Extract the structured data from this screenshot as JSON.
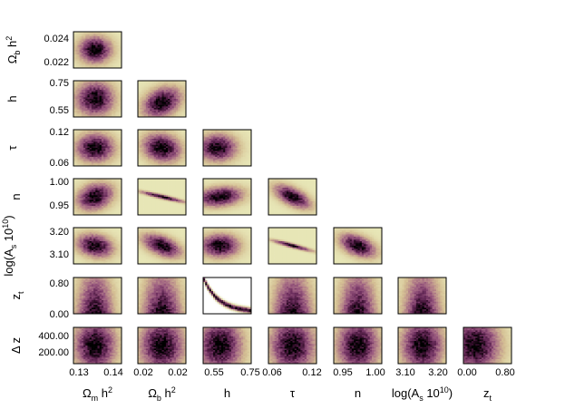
{
  "chart_data": {
    "type": "heatmap",
    "subtype": "corner-plot",
    "parameters": [
      {
        "id": "omh2",
        "label": "Ω_m h^2",
        "ticks": [
          "0.13",
          "0.14"
        ],
        "range": [
          0.125,
          0.145
        ]
      },
      {
        "id": "obh2",
        "label": "Ω_b h^2",
        "ticks": [
          "0.02",
          "0.02"
        ],
        "range": [
          0.0212,
          0.0248
        ]
      },
      {
        "id": "h",
        "label": "h",
        "ticks": [
          "0.55",
          "0.75"
        ],
        "range": [
          0.5,
          0.8
        ]
      },
      {
        "id": "tau",
        "label": "τ",
        "ticks": [
          "0.06",
          "0.12"
        ],
        "range": [
          0.04,
          0.14
        ]
      },
      {
        "id": "n",
        "label": "n",
        "ticks": [
          "0.95",
          "1.00"
        ],
        "range": [
          0.92,
          1.02
        ]
      },
      {
        "id": "logAs",
        "label": "log(A_s 10^10)",
        "ticks": [
          "3.10",
          "3.20"
        ],
        "range": [
          3.04,
          3.26
        ]
      },
      {
        "id": "zt",
        "label": "z_t",
        "ticks": [
          "0.00",
          "0.80"
        ],
        "range": [
          -0.1,
          0.95
        ]
      }
    ],
    "row_params": [
      {
        "id": "obh2",
        "label": "Ω_b h^2",
        "ticks": [
          "0.024",
          "0.022"
        ]
      },
      {
        "id": "h",
        "label": "h",
        "ticks": [
          "0.75",
          "0.55"
        ]
      },
      {
        "id": "tau",
        "label": "τ",
        "ticks": [
          "0.12",
          "0.06"
        ]
      },
      {
        "id": "n",
        "label": "n",
        "ticks": [
          "1.00",
          "0.95"
        ]
      },
      {
        "id": "logAs",
        "label": "log(A_s 10^10)",
        "ticks": [
          "3.20",
          "3.10"
        ]
      },
      {
        "id": "zt",
        "label": "z_t",
        "ticks": [
          "0.80",
          "0.00"
        ]
      },
      {
        "id": "dz",
        "label": "Δ z",
        "ticks": [
          "400.00",
          "200.00"
        ]
      }
    ],
    "panels": [
      {
        "row": 0,
        "col": 0,
        "shape": "blob",
        "cx": 0.45,
        "cy": 0.5,
        "sx": 0.28,
        "sy": 0.3,
        "rho": 0.0
      },
      {
        "row": 1,
        "col": 0,
        "shape": "blob",
        "cx": 0.45,
        "cy": 0.5,
        "sx": 0.32,
        "sy": 0.38,
        "rho": 0.0
      },
      {
        "row": 1,
        "col": 1,
        "shape": "blob",
        "cx": 0.5,
        "cy": 0.6,
        "sx": 0.32,
        "sy": 0.34,
        "rho": -0.3
      },
      {
        "row": 2,
        "col": 0,
        "shape": "blob",
        "cx": 0.45,
        "cy": 0.5,
        "sx": 0.32,
        "sy": 0.32,
        "rho": 0.0
      },
      {
        "row": 2,
        "col": 1,
        "shape": "blob",
        "cx": 0.5,
        "cy": 0.5,
        "sx": 0.32,
        "sy": 0.32,
        "rho": 0.15
      },
      {
        "row": 2,
        "col": 2,
        "shape": "blob",
        "cx": 0.3,
        "cy": 0.5,
        "sx": 0.32,
        "sy": 0.3,
        "rho": 0.0
      },
      {
        "row": 3,
        "col": 0,
        "shape": "blob",
        "cx": 0.45,
        "cy": 0.5,
        "sx": 0.3,
        "sy": 0.3,
        "rho": -0.25
      },
      {
        "row": 3,
        "col": 1,
        "shape": "blob",
        "cx": 0.5,
        "cy": 0.5,
        "sx": 0.36,
        "sy": 0.12,
        "rho": 0.92
      },
      {
        "row": 3,
        "col": 2,
        "shape": "blob",
        "cx": 0.35,
        "cy": 0.5,
        "sx": 0.38,
        "sy": 0.22,
        "rho": -0.2
      },
      {
        "row": 3,
        "col": 3,
        "shape": "blob",
        "cx": 0.5,
        "cy": 0.5,
        "sx": 0.3,
        "sy": 0.26,
        "rho": 0.6
      },
      {
        "row": 4,
        "col": 0,
        "shape": "blob",
        "cx": 0.45,
        "cy": 0.5,
        "sx": 0.3,
        "sy": 0.26,
        "rho": 0.2
      },
      {
        "row": 4,
        "col": 1,
        "shape": "blob",
        "cx": 0.5,
        "cy": 0.5,
        "sx": 0.32,
        "sy": 0.26,
        "rho": 0.5
      },
      {
        "row": 4,
        "col": 2,
        "shape": "blob",
        "cx": 0.35,
        "cy": 0.5,
        "sx": 0.32,
        "sy": 0.26,
        "rho": 0.0
      },
      {
        "row": 4,
        "col": 3,
        "shape": "blob",
        "cx": 0.5,
        "cy": 0.5,
        "sx": 0.32,
        "sy": 0.12,
        "rho": 0.92
      },
      {
        "row": 4,
        "col": 4,
        "shape": "blob",
        "cx": 0.5,
        "cy": 0.5,
        "sx": 0.3,
        "sy": 0.26,
        "rho": 0.45
      },
      {
        "row": 5,
        "col": 0,
        "shape": "column",
        "cx": 0.45,
        "sx": 0.3
      },
      {
        "row": 5,
        "col": 1,
        "shape": "column",
        "cx": 0.5,
        "sx": 0.32
      },
      {
        "row": 5,
        "col": 2,
        "shape": "curve"
      },
      {
        "row": 5,
        "col": 3,
        "shape": "column",
        "cx": 0.5,
        "sx": 0.32
      },
      {
        "row": 5,
        "col": 4,
        "shape": "column",
        "cx": 0.5,
        "sx": 0.3
      },
      {
        "row": 5,
        "col": 5,
        "shape": "column",
        "cx": 0.5,
        "sx": 0.3
      },
      {
        "row": 6,
        "col": 0,
        "shape": "stripe",
        "cx": 0.45,
        "sx": 0.3
      },
      {
        "row": 6,
        "col": 1,
        "shape": "stripe",
        "cx": 0.5,
        "sx": 0.32
      },
      {
        "row": 6,
        "col": 2,
        "shape": "stripe",
        "cx": 0.35,
        "sx": 0.32
      },
      {
        "row": 6,
        "col": 3,
        "shape": "stripe",
        "cx": 0.5,
        "sx": 0.32
      },
      {
        "row": 6,
        "col": 4,
        "shape": "stripe",
        "cx": 0.5,
        "sx": 0.3
      },
      {
        "row": 6,
        "col": 5,
        "shape": "stripe",
        "cx": 0.5,
        "sx": 0.3
      },
      {
        "row": 6,
        "col": 6,
        "shape": "stripe",
        "cx": 0.25,
        "sx": 0.35
      }
    ],
    "colormap": [
      "#ffffff",
      "#e8e8b8",
      "#d4bf93",
      "#b98a8a",
      "#9a5a7f",
      "#6e2f5f",
      "#3a1030",
      "#000000"
    ],
    "grid": false,
    "legend": "none"
  }
}
